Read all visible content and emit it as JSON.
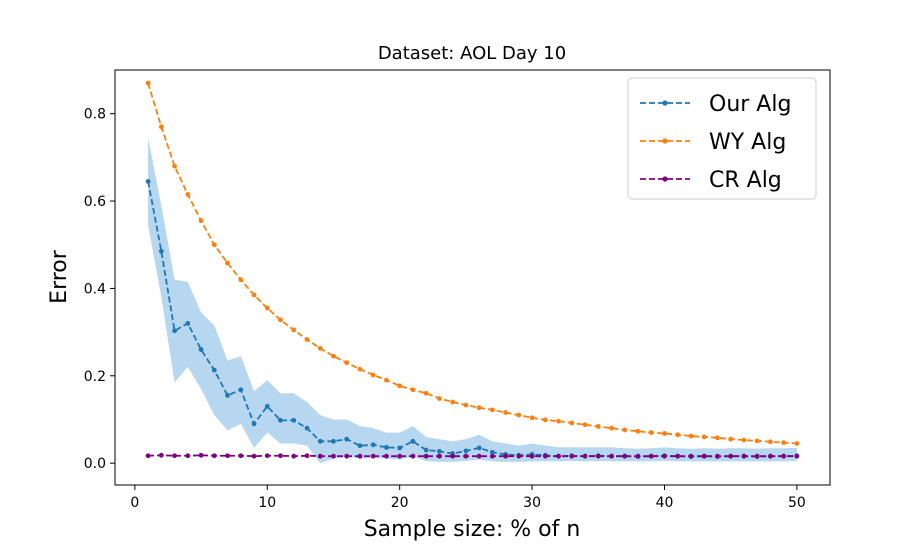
{
  "chart_data": {
    "type": "line",
    "title": "Dataset: AOL Day 10",
    "xlabel": "Sample size: % of n",
    "ylabel": "Error",
    "xlim": [
      -1.5,
      52.5
    ],
    "ylim": [
      -0.05,
      0.9
    ],
    "xticks": [
      0,
      10,
      20,
      30,
      40,
      50
    ],
    "yticks": [
      0.0,
      0.2,
      0.4,
      0.6,
      0.8
    ],
    "xtick_labels": [
      "0",
      "10",
      "20",
      "30",
      "40",
      "50"
    ],
    "ytick_labels": [
      "0.0",
      "0.2",
      "0.4",
      "0.6",
      "0.8"
    ],
    "legend_position": "top-right",
    "x": [
      1,
      2,
      3,
      4,
      5,
      6,
      7,
      8,
      9,
      10,
      11,
      12,
      13,
      14,
      15,
      16,
      17,
      18,
      19,
      20,
      21,
      22,
      23,
      24,
      25,
      26,
      27,
      28,
      29,
      30,
      31,
      32,
      33,
      34,
      35,
      36,
      37,
      38,
      39,
      40,
      41,
      42,
      43,
      44,
      45,
      46,
      47,
      48,
      49,
      50
    ],
    "series": [
      {
        "name": "Our Alg",
        "color": "#1f77b4",
        "band_color": "#9ecae9",
        "values": [
          0.645,
          0.485,
          0.303,
          0.32,
          0.26,
          0.213,
          0.155,
          0.168,
          0.09,
          0.13,
          0.098,
          0.098,
          0.08,
          0.05,
          0.05,
          0.055,
          0.04,
          0.042,
          0.036,
          0.035,
          0.05,
          0.03,
          0.027,
          0.022,
          0.028,
          0.035,
          0.025,
          0.02,
          0.018,
          0.02,
          0.018,
          0.016,
          0.017,
          0.016,
          0.017,
          0.016,
          0.016,
          0.015,
          0.016,
          0.017,
          0.016,
          0.015,
          0.016,
          0.015,
          0.016,
          0.016,
          0.015,
          0.016,
          0.016,
          0.017
        ],
        "lower": [
          0.545,
          0.38,
          0.185,
          0.22,
          0.17,
          0.11,
          0.075,
          0.09,
          0.035,
          0.07,
          0.045,
          0.045,
          0.04,
          0.0,
          0.01,
          0.015,
          0.01,
          0.012,
          0.01,
          0.008,
          0.015,
          0.005,
          0.003,
          0.003,
          0.005,
          0.008,
          0.004,
          0.003,
          0.003,
          0.004,
          0.004,
          0.004,
          0.005,
          0.004,
          0.005,
          0.004,
          0.004,
          0.004,
          0.004,
          0.005,
          0.004,
          0.004,
          0.004,
          0.004,
          0.004,
          0.004,
          0.004,
          0.004,
          0.004,
          0.005
        ],
        "upper": [
          0.745,
          0.59,
          0.42,
          0.415,
          0.345,
          0.315,
          0.235,
          0.245,
          0.165,
          0.19,
          0.16,
          0.16,
          0.14,
          0.11,
          0.1,
          0.1,
          0.085,
          0.08,
          0.07,
          0.07,
          0.085,
          0.06,
          0.055,
          0.05,
          0.055,
          0.065,
          0.05,
          0.045,
          0.04,
          0.045,
          0.04,
          0.036,
          0.036,
          0.036,
          0.036,
          0.036,
          0.034,
          0.033,
          0.034,
          0.036,
          0.034,
          0.033,
          0.034,
          0.033,
          0.034,
          0.034,
          0.033,
          0.034,
          0.034,
          0.035
        ]
      },
      {
        "name": "WY Alg",
        "color": "#ff7f0e",
        "values": [
          0.87,
          0.77,
          0.68,
          0.615,
          0.555,
          0.5,
          0.458,
          0.42,
          0.385,
          0.355,
          0.328,
          0.305,
          0.283,
          0.263,
          0.245,
          0.23,
          0.215,
          0.202,
          0.19,
          0.177,
          0.168,
          0.16,
          0.148,
          0.14,
          0.133,
          0.127,
          0.122,
          0.116,
          0.11,
          0.104,
          0.099,
          0.096,
          0.092,
          0.088,
          0.084,
          0.08,
          0.076,
          0.073,
          0.07,
          0.068,
          0.065,
          0.062,
          0.06,
          0.058,
          0.055,
          0.053,
          0.051,
          0.049,
          0.047,
          0.045
        ]
      },
      {
        "name": "CR Alg",
        "color": "#800080",
        "values": [
          0.017,
          0.018,
          0.017,
          0.017,
          0.018,
          0.017,
          0.017,
          0.017,
          0.016,
          0.017,
          0.017,
          0.016,
          0.017,
          0.016,
          0.016,
          0.016,
          0.016,
          0.016,
          0.016,
          0.016,
          0.016,
          0.016,
          0.016,
          0.016,
          0.016,
          0.016,
          0.016,
          0.016,
          0.016,
          0.016,
          0.016,
          0.016,
          0.016,
          0.016,
          0.016,
          0.016,
          0.016,
          0.016,
          0.016,
          0.016,
          0.016,
          0.016,
          0.016,
          0.016,
          0.016,
          0.016,
          0.016,
          0.016,
          0.016,
          0.016
        ]
      }
    ]
  }
}
